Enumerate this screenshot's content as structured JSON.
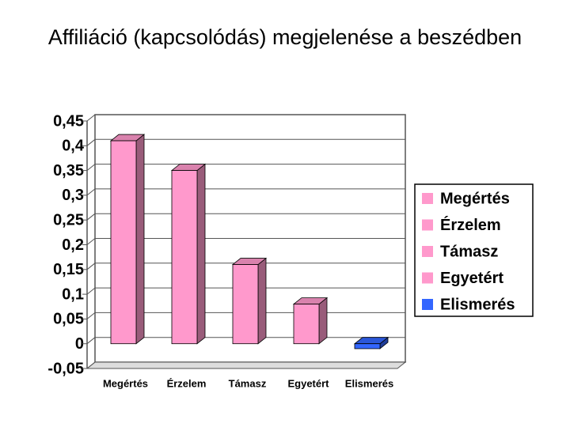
{
  "chart_data": {
    "type": "bar",
    "title": "Affiliáció (kapcsolódás) megjelenése a beszédben",
    "categories": [
      "Megértés",
      "Érzelem",
      "Támasz",
      "Egyetért",
      "Elismerés"
    ],
    "values": [
      0.41,
      0.35,
      0.16,
      0.08,
      -0.01
    ],
    "colors": [
      "#ff99cc",
      "#ff99cc",
      "#ff99cc",
      "#ff99cc",
      "#3366ff"
    ],
    "ylim": [
      -0.05,
      0.45
    ],
    "yticks": [
      {
        "value": -0.05,
        "label": "-0,05"
      },
      0,
      {
        "value": 0.05,
        "label": "0,05"
      },
      {
        "value": 0.1,
        "label": "0,1"
      },
      {
        "value": 0.15,
        "label": "0,15"
      },
      {
        "value": 0.2,
        "label": "0,2"
      },
      {
        "value": 0.25,
        "label": "0,25"
      },
      {
        "value": 0.3,
        "label": "0,3"
      },
      {
        "value": 0.35,
        "label": "0,35"
      },
      {
        "value": 0.4,
        "label": "0,4"
      },
      {
        "value": 0.45,
        "label": "0,45"
      }
    ],
    "grid": true,
    "legend": "right"
  }
}
